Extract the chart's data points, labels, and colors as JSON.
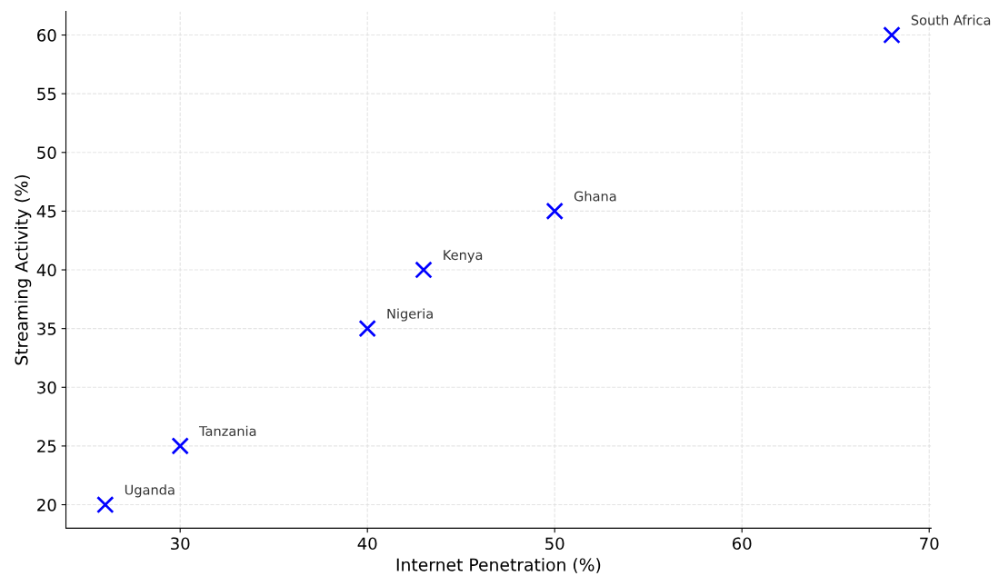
{
  "chart_data": {
    "type": "scatter",
    "xlabel": "Internet Penetration (%)",
    "ylabel": "Streaming Activity (%)",
    "x": [
      26,
      30,
      40,
      43,
      50,
      68
    ],
    "series": [
      {
        "color": "#0000ff",
        "values": [
          20,
          25,
          35,
          40,
          45,
          60
        ]
      }
    ],
    "marker": "cross",
    "grid": true,
    "legend": false,
    "xlim": [
      23.9,
      70.1
    ],
    "ylim": [
      18,
      62
    ],
    "xticks": [
      30,
      40,
      50,
      60,
      70
    ],
    "yticks": [
      20,
      25,
      30,
      35,
      40,
      45,
      50,
      55,
      60
    ],
    "annotations": [
      {
        "text": "Uganda",
        "x": 26,
        "y": 20
      },
      {
        "text": "Tanzania",
        "x": 30,
        "y": 25
      },
      {
        "text": "Nigeria",
        "x": 40,
        "y": 35
      },
      {
        "text": "Kenya",
        "x": 43,
        "y": 40
      },
      {
        "text": "Ghana",
        "x": 50,
        "y": 45
      },
      {
        "text": "South Africa",
        "x": 68,
        "y": 60
      }
    ]
  }
}
